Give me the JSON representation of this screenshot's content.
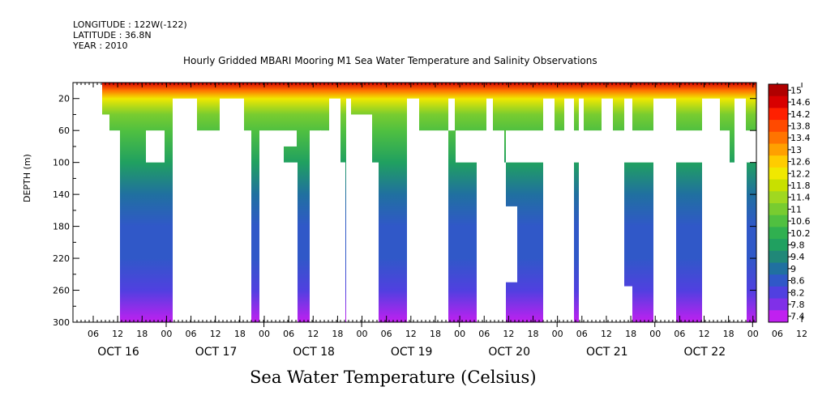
{
  "meta": {
    "longitude": "LONGITUDE : 122W(-122)",
    "latitude": "LATITUDE : 36.8N",
    "year": "YEAR : 2010"
  },
  "chart_data": {
    "type": "heatmap",
    "title": "Hourly Gridded MBARI Mooring M1 Sea Water Temperature and Salinity Observations",
    "xlabel": "Sea Water Temperature (Celsius)",
    "ylabel": "DEPTH (m)",
    "y_ticks": [
      20,
      60,
      100,
      140,
      180,
      220,
      260,
      300
    ],
    "ylim": [
      300,
      0
    ],
    "x_hour_ticks": [
      "06",
      "12",
      "18",
      "00",
      "06",
      "12",
      "18",
      "00",
      "06",
      "12",
      "18",
      "00",
      "06",
      "12",
      "18",
      "00",
      "06",
      "12",
      "18",
      "00",
      "06",
      "12",
      "18",
      "00",
      "06",
      "12",
      "18",
      "00",
      "06",
      "12",
      "18",
      "00"
    ],
    "x_day_labels": [
      "OCT 16",
      "OCT 17",
      "OCT 18",
      "OCT 19",
      "OCT 20",
      "OCT 21",
      "OCT 22"
    ],
    "colorbar_labels": [
      "15",
      "14.6",
      "14.2",
      "13.8",
      "13.4",
      "13",
      "12.6",
      "12.2",
      "11.8",
      "11.4",
      "11",
      "10.6",
      "10.2",
      "9.8",
      "9.4",
      "9",
      "8.6",
      "8.2",
      "7.8",
      "7.4"
    ],
    "colorbar_colors": [
      "#b00000",
      "#d80000",
      "#ff2000",
      "#ff4a00",
      "#ff7400",
      "#ffa000",
      "#ffcc00",
      "#f0e800",
      "#c8e000",
      "#a0d820",
      "#78cc30",
      "#50c040",
      "#30b050",
      "#20a060",
      "#208878",
      "#2070a0",
      "#3058c8",
      "#5040e0",
      "#8030e8",
      "#c020f0"
    ],
    "profile": [
      {
        "depth": 0,
        "temp": 14.6
      },
      {
        "depth": 10,
        "temp": 13.4
      },
      {
        "depth": 20,
        "temp": 12.2
      },
      {
        "depth": 40,
        "temp": 11.2
      },
      {
        "depth": 60,
        "temp": 10.6
      },
      {
        "depth": 100,
        "temp": 9.8
      },
      {
        "depth": 140,
        "temp": 9.3
      },
      {
        "depth": 180,
        "temp": 8.9
      },
      {
        "depth": 220,
        "temp": 8.6
      },
      {
        "depth": 260,
        "temp": 8.2
      },
      {
        "depth": 300,
        "temp": 7.6
      }
    ]
  }
}
